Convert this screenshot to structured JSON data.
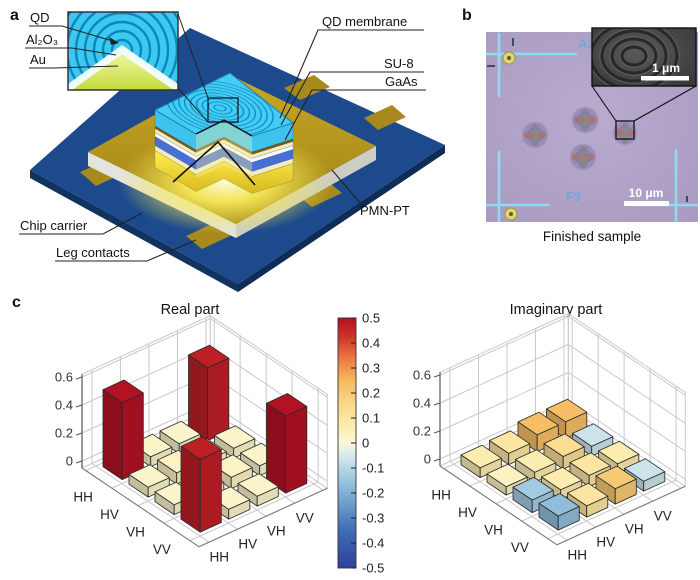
{
  "figure": {
    "panel_a": {
      "label": "a",
      "qd": "QD",
      "al2o3": "Al₂O₃",
      "au": "Au",
      "qd_membrane": "QD membrane",
      "su8": "SU-8",
      "gaas": "GaAs",
      "pmnpt": "PMN-PT",
      "chip_carrier": "Chip carrier",
      "leg_contacts": "Leg contacts"
    },
    "panel_b": {
      "label": "b",
      "caption": "Finished sample",
      "scale_bar": "10 μm",
      "inset_scale_bar": "1 μm",
      "mark_top": "A3",
      "mark_bottom": "F3"
    },
    "panel_c": {
      "label": "c"
    }
  },
  "palette": {
    "chip_carrier_blue": "#1c4a8c",
    "gold_contact": "#a8891e",
    "membrane_cyan": "#3ec3ee",
    "su8_blue": "#476fd8",
    "micrograph_lavender": "#b3a5c9",
    "bar_red": "#b31124",
    "tile_yellow": "#f3efb9",
    "tile_blue": "#dcebe4"
  },
  "chart_data": [
    {
      "type": "bar3d",
      "title": "Real part",
      "row_labels": [
        "HH",
        "HV",
        "VH",
        "VV"
      ],
      "col_labels": [
        "HH",
        "HV",
        "VH",
        "VV"
      ],
      "values": [
        [
          0.5,
          0.02,
          0.02,
          0.47
        ],
        [
          0.02,
          0.03,
          0.02,
          0.02
        ],
        [
          0.02,
          0.02,
          0.03,
          0.02
        ],
        [
          0.47,
          0.02,
          0.02,
          0.5
        ]
      ],
      "z_ticks": [
        0,
        0.2,
        0.4,
        0.6
      ],
      "z_lim": [
        0,
        0.6
      ],
      "color_scale": 0.5,
      "grid": true
    },
    {
      "type": "bar3d",
      "title": "Imaginary part",
      "row_labels": [
        "HH",
        "HV",
        "VH",
        "VV"
      ],
      "col_labels": [
        "HH",
        "HV",
        "VH",
        "VV"
      ],
      "values": [
        [
          0.02,
          0.03,
          0.07,
          0.07
        ],
        [
          0.01,
          0.02,
          0.04,
          -0.02
        ],
        [
          -0.04,
          0.02,
          0.03,
          0.02
        ],
        [
          -0.05,
          0.03,
          0.06,
          -0.02
        ]
      ],
      "z_ticks": [
        0,
        0.2,
        0.4,
        0.6
      ],
      "z_lim": [
        0,
        0.6
      ],
      "color_scale": 0.15,
      "grid": true
    },
    {
      "type": "colorbar",
      "ticks": [
        0.5,
        0.4,
        0.3,
        0.2,
        0.1,
        0,
        -0.1,
        -0.2,
        -0.3,
        -0.4,
        -0.5
      ],
      "range": [
        -0.5,
        0.5
      ],
      "colormap_stops": [
        [
          -1,
          "#2f3f9d"
        ],
        [
          -0.7,
          "#3f6cb4"
        ],
        [
          -0.4,
          "#7fb0d5"
        ],
        [
          -0.2,
          "#b5d8e6"
        ],
        [
          -0.08,
          "#ddeef0"
        ],
        [
          0,
          "#fbf7d8"
        ],
        [
          0.1,
          "#fcf0b6"
        ],
        [
          0.3,
          "#f9d98c"
        ],
        [
          0.5,
          "#f7b95e"
        ],
        [
          0.7,
          "#e8713f"
        ],
        [
          0.85,
          "#cc3327"
        ],
        [
          1,
          "#b31124"
        ]
      ]
    }
  ]
}
